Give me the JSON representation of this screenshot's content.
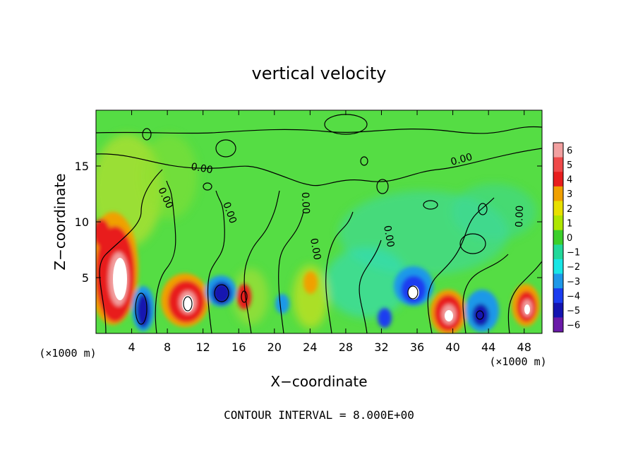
{
  "chart_data": {
    "type": "heatmap",
    "title": "vertical velocity",
    "xlabel": "X−coordinate",
    "ylabel": "Z−coordinate",
    "x_unit_left": "(×1000 m)",
    "x_unit_right": "(×1000 m)",
    "xlim": [
      0,
      50
    ],
    "ylim": [
      0,
      20
    ],
    "x_ticks": [
      4,
      8,
      12,
      16,
      20,
      24,
      28,
      32,
      36,
      40,
      44,
      48
    ],
    "x_tick_labels": [
      "4",
      "8",
      "12",
      "16",
      "20",
      "24",
      "28",
      "32",
      "36",
      "40",
      "44",
      "48"
    ],
    "y_ticks": [
      5,
      10,
      15
    ],
    "y_tick_labels": [
      "5",
      "10",
      "15"
    ],
    "footer": "CONTOUR INTERVAL = 8.000E+00",
    "contour_labels": [
      "0.00",
      "0.00",
      "0.00",
      "0.00",
      "0.00",
      "0.00",
      "0.00",
      "0.00"
    ],
    "colorbar": {
      "levels": [
        6,
        5,
        4,
        3,
        2,
        1,
        0,
        -1,
        -2,
        -3,
        -4,
        -5,
        -6
      ],
      "labels": [
        "6",
        "5",
        "4",
        "3",
        "2",
        "1",
        "0",
        "−1",
        "−2",
        "−3",
        "−4",
        "−5",
        "−6"
      ],
      "colors": [
        "#f2a0a0",
        "#ef4a4a",
        "#e81e1e",
        "#f0a000",
        "#e8e000",
        "#aee600",
        "#3ccf2a",
        "#22d89a",
        "#18e6e6",
        "#1e98e8",
        "#1a3cf0",
        "#1414b0",
        "#6a1aa8"
      ]
    },
    "background_color": "#55dd44",
    "features": [
      {
        "x": 1.5,
        "z": 5.5,
        "peak": 6,
        "label": "updraft"
      },
      {
        "x": 5.2,
        "z": 2.2,
        "peak": -6,
        "label": "downdraft"
      },
      {
        "x": 10.0,
        "z": 2.8,
        "peak": 6,
        "label": "updraft"
      },
      {
        "x": 14.2,
        "z": 3.8,
        "peak": -6,
        "label": "downdraft"
      },
      {
        "x": 16.7,
        "z": 3.2,
        "peak": 6,
        "label": "updraft"
      },
      {
        "x": 35.2,
        "z": 3.6,
        "peak": -6,
        "label": "downdraft"
      },
      {
        "x": 39.5,
        "z": 2.2,
        "peak": 6,
        "label": "updraft"
      },
      {
        "x": 43.2,
        "z": 1.8,
        "peak": -6,
        "label": "downdraft"
      },
      {
        "x": 48.3,
        "z": 2.2,
        "peak": 6,
        "label": "updraft"
      }
    ]
  }
}
